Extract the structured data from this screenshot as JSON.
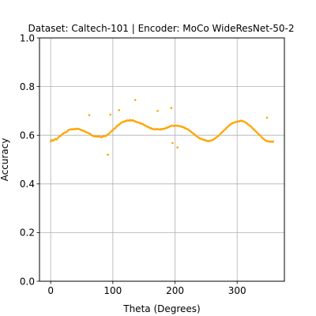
{
  "chart_data": {
    "type": "scatter",
    "title": "Dataset: Caltech-101 | Encoder: MoCo WideResNet-50-2",
    "xlabel": "Theta (Degrees)",
    "ylabel": "Accuracy",
    "xlim": [
      -18,
      376
    ],
    "ylim": [
      0,
      1
    ],
    "xticks": [
      0,
      100,
      200,
      300
    ],
    "yticks": [
      0.0,
      0.2,
      0.4,
      0.6,
      0.8,
      1.0
    ],
    "xtick_labels": [
      "0",
      "100",
      "200",
      "300"
    ],
    "ytick_labels": [
      "0.0",
      "0.2",
      "0.4",
      "0.6",
      "0.8",
      "1.0"
    ],
    "grid": true,
    "marker_color": "#ffa500",
    "points": [
      [
        0,
        0.575
      ],
      [
        2,
        0.58
      ],
      [
        4,
        0.578
      ],
      [
        6,
        0.582
      ],
      [
        8,
        0.585
      ],
      [
        10,
        0.583
      ],
      [
        12,
        0.59
      ],
      [
        14,
        0.595
      ],
      [
        16,
        0.598
      ],
      [
        18,
        0.603
      ],
      [
        20,
        0.607
      ],
      [
        22,
        0.61
      ],
      [
        24,
        0.612
      ],
      [
        26,
        0.615
      ],
      [
        28,
        0.62
      ],
      [
        30,
        0.623
      ],
      [
        32,
        0.624
      ],
      [
        34,
        0.625
      ],
      [
        36,
        0.624
      ],
      [
        38,
        0.626
      ],
      [
        40,
        0.625
      ],
      [
        42,
        0.627
      ],
      [
        44,
        0.626
      ],
      [
        46,
        0.625
      ],
      [
        48,
        0.623
      ],
      [
        50,
        0.62
      ],
      [
        52,
        0.619
      ],
      [
        54,
        0.617
      ],
      [
        56,
        0.614
      ],
      [
        58,
        0.612
      ],
      [
        60,
        0.61
      ],
      [
        62,
        0.607
      ],
      [
        64,
        0.605
      ],
      [
        66,
        0.6
      ],
      [
        68,
        0.597
      ],
      [
        70,
        0.596
      ],
      [
        72,
        0.595
      ],
      [
        74,
        0.595
      ],
      [
        76,
        0.594
      ],
      [
        78,
        0.596
      ],
      [
        80,
        0.593
      ],
      [
        82,
        0.592
      ],
      [
        84,
        0.595
      ],
      [
        86,
        0.597
      ],
      [
        88,
        0.596
      ],
      [
        90,
        0.6
      ],
      [
        92,
        0.603
      ],
      [
        94,
        0.607
      ],
      [
        96,
        0.612
      ],
      [
        98,
        0.617
      ],
      [
        100,
        0.621
      ],
      [
        102,
        0.627
      ],
      [
        104,
        0.63
      ],
      [
        106,
        0.636
      ],
      [
        108,
        0.64
      ],
      [
        110,
        0.644
      ],
      [
        112,
        0.648
      ],
      [
        114,
        0.652
      ],
      [
        116,
        0.655
      ],
      [
        118,
        0.656
      ],
      [
        120,
        0.658
      ],
      [
        122,
        0.66
      ],
      [
        124,
        0.661
      ],
      [
        126,
        0.66
      ],
      [
        128,
        0.663
      ],
      [
        130,
        0.66
      ],
      [
        132,
        0.662
      ],
      [
        134,
        0.659
      ],
      [
        136,
        0.657
      ],
      [
        138,
        0.655
      ],
      [
        140,
        0.653
      ],
      [
        142,
        0.652
      ],
      [
        144,
        0.649
      ],
      [
        146,
        0.648
      ],
      [
        148,
        0.646
      ],
      [
        150,
        0.643
      ],
      [
        152,
        0.64
      ],
      [
        154,
        0.637
      ],
      [
        156,
        0.635
      ],
      [
        158,
        0.632
      ],
      [
        160,
        0.63
      ],
      [
        162,
        0.628
      ],
      [
        164,
        0.626
      ],
      [
        166,
        0.625
      ],
      [
        168,
        0.624
      ],
      [
        170,
        0.626
      ],
      [
        172,
        0.624
      ],
      [
        174,
        0.625
      ],
      [
        176,
        0.623
      ],
      [
        178,
        0.626
      ],
      [
        180,
        0.625
      ],
      [
        182,
        0.627
      ],
      [
        184,
        0.628
      ],
      [
        186,
        0.63
      ],
      [
        188,
        0.632
      ],
      [
        190,
        0.634
      ],
      [
        192,
        0.637
      ],
      [
        194,
        0.638
      ],
      [
        196,
        0.64
      ],
      [
        198,
        0.638
      ],
      [
        200,
        0.64
      ],
      [
        202,
        0.639
      ],
      [
        204,
        0.64
      ],
      [
        206,
        0.638
      ],
      [
        208,
        0.637
      ],
      [
        210,
        0.636
      ],
      [
        212,
        0.634
      ],
      [
        214,
        0.632
      ],
      [
        216,
        0.63
      ],
      [
        218,
        0.627
      ],
      [
        220,
        0.625
      ],
      [
        222,
        0.622
      ],
      [
        224,
        0.618
      ],
      [
        226,
        0.614
      ],
      [
        228,
        0.61
      ],
      [
        230,
        0.606
      ],
      [
        232,
        0.602
      ],
      [
        234,
        0.598
      ],
      [
        236,
        0.594
      ],
      [
        238,
        0.59
      ],
      [
        240,
        0.587
      ],
      [
        242,
        0.585
      ],
      [
        244,
        0.583
      ],
      [
        246,
        0.581
      ],
      [
        248,
        0.58
      ],
      [
        250,
        0.578
      ],
      [
        252,
        0.577
      ],
      [
        254,
        0.576
      ],
      [
        256,
        0.577
      ],
      [
        258,
        0.578
      ],
      [
        260,
        0.58
      ],
      [
        262,
        0.583
      ],
      [
        264,
        0.586
      ],
      [
        266,
        0.59
      ],
      [
        268,
        0.594
      ],
      [
        270,
        0.598
      ],
      [
        272,
        0.603
      ],
      [
        274,
        0.608
      ],
      [
        276,
        0.613
      ],
      [
        278,
        0.618
      ],
      [
        280,
        0.623
      ],
      [
        282,
        0.628
      ],
      [
        284,
        0.633
      ],
      [
        286,
        0.638
      ],
      [
        288,
        0.642
      ],
      [
        290,
        0.646
      ],
      [
        292,
        0.649
      ],
      [
        294,
        0.651
      ],
      [
        296,
        0.653
      ],
      [
        298,
        0.655
      ],
      [
        300,
        0.656
      ],
      [
        302,
        0.657
      ],
      [
        304,
        0.658
      ],
      [
        306,
        0.66
      ],
      [
        308,
        0.659
      ],
      [
        310,
        0.657
      ],
      [
        312,
        0.655
      ],
      [
        314,
        0.652
      ],
      [
        316,
        0.648
      ],
      [
        318,
        0.644
      ],
      [
        320,
        0.64
      ],
      [
        322,
        0.636
      ],
      [
        324,
        0.631
      ],
      [
        326,
        0.626
      ],
      [
        328,
        0.621
      ],
      [
        330,
        0.616
      ],
      [
        332,
        0.611
      ],
      [
        334,
        0.606
      ],
      [
        336,
        0.601
      ],
      [
        338,
        0.596
      ],
      [
        340,
        0.59
      ],
      [
        342,
        0.586
      ],
      [
        344,
        0.582
      ],
      [
        346,
        0.578
      ],
      [
        348,
        0.576
      ],
      [
        350,
        0.575
      ],
      [
        352,
        0.574
      ],
      [
        354,
        0.574
      ],
      [
        356,
        0.573
      ],
      [
        358,
        0.574
      ],
      [
        62,
        0.683
      ],
      [
        92,
        0.52
      ],
      [
        96,
        0.685
      ],
      [
        110,
        0.703
      ],
      [
        136,
        0.745
      ],
      [
        172,
        0.7
      ],
      [
        194,
        0.712
      ],
      [
        196,
        0.568
      ],
      [
        204,
        0.55
      ],
      [
        348,
        0.672
      ]
    ]
  }
}
